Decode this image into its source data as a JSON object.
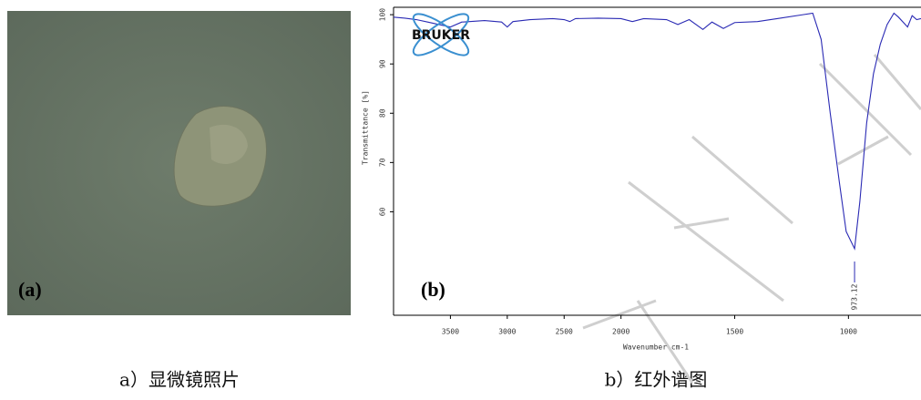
{
  "panel_a": {
    "label": "(a)",
    "caption": "a）显微镜照片"
  },
  "panel_b_caption": "b）红外谱图",
  "chart_data": {
    "type": "line",
    "panel_label": "(b)",
    "logo": "BRUKER",
    "xlabel": "Wavenumber cm-1",
    "ylabel": "Transmittance [%]",
    "xlim": [
      4000,
      681
    ],
    "x_scale_break": {
      "at": 2000,
      "factor": 2
    },
    "xticks": [
      3500,
      3000,
      2500,
      2000,
      1500,
      1000
    ],
    "ylim": [
      39,
      101.5
    ],
    "yticks": [
      60,
      70,
      80,
      90,
      100
    ],
    "series": [
      {
        "color": "#2a2ab4",
        "x": [
          4000,
          3900,
          3800,
          3700,
          3600,
          3500,
          3400,
          3200,
          3050,
          3000,
          2950,
          2800,
          2600,
          2500,
          2450,
          2400,
          2200,
          2000,
          1950,
          1900,
          1800,
          1750,
          1700,
          1640,
          1600,
          1550,
          1500,
          1400,
          1300,
          1200,
          1157,
          1120,
          1080,
          1040,
          1010,
          973,
          950,
          920,
          890,
          860,
          830,
          800,
          780,
          740,
          720,
          700,
          681
        ],
        "values": [
          99.5,
          99.3,
          99,
          98.5,
          98,
          97.5,
          98.5,
          98.8,
          98.5,
          97.5,
          98.6,
          99,
          99.2,
          99,
          98.6,
          99.2,
          99.3,
          99.2,
          98.6,
          99.2,
          99,
          98,
          99,
          97,
          98.5,
          97.2,
          98.4,
          98.6,
          99.3,
          100,
          100.3,
          95,
          80,
          66,
          56,
          52.5,
          62,
          78,
          88,
          94,
          98,
          100.3,
          99.5,
          97.5,
          99.8,
          99,
          99.2
        ]
      }
    ],
    "annotations": [
      {
        "x": 973.12,
        "text": "973.12"
      }
    ]
  }
}
